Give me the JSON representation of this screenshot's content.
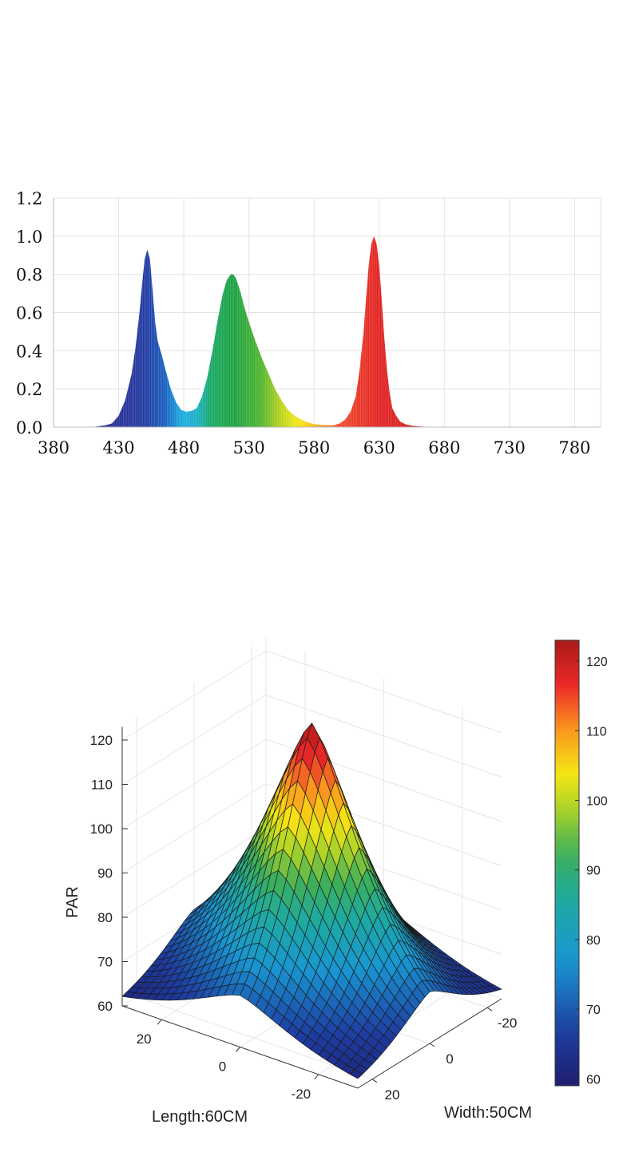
{
  "chart_data": [
    {
      "type": "area",
      "title": "",
      "xlabel": "",
      "ylabel": "",
      "xlim": [
        380,
        800
      ],
      "ylim": [
        0,
        1.2
      ],
      "x_ticks": [
        "380",
        "430",
        "480",
        "530",
        "580",
        "630",
        "680",
        "730",
        "780"
      ],
      "y_ticks": [
        "0.0",
        "0.2",
        "0.4",
        "0.6",
        "0.8",
        "1.0",
        "1.2"
      ],
      "grid": true,
      "fill": "spectral wavelength colors",
      "series": [
        {
          "x": [
            410,
            415,
            420,
            425,
            430,
            435,
            440,
            443,
            446,
            448,
            450,
            452,
            454,
            456,
            458,
            460,
            463,
            466,
            470,
            474,
            478,
            482,
            486,
            490,
            494,
            498,
            502,
            506,
            510,
            513,
            516,
            518,
            520,
            523,
            526,
            530,
            535,
            540,
            545,
            550,
            555,
            560,
            565,
            570,
            575,
            580,
            585,
            590,
            595,
            600,
            604,
            608,
            612,
            615,
            618,
            620,
            622,
            624,
            626,
            628,
            630,
            632,
            634,
            636,
            638,
            640,
            643,
            646,
            650,
            655,
            660,
            665,
            670,
            675
          ],
          "y": [
            0.0,
            0.005,
            0.01,
            0.02,
            0.06,
            0.14,
            0.28,
            0.42,
            0.6,
            0.75,
            0.88,
            0.93,
            0.88,
            0.72,
            0.55,
            0.45,
            0.38,
            0.3,
            0.2,
            0.13,
            0.09,
            0.08,
            0.085,
            0.1,
            0.16,
            0.26,
            0.4,
            0.56,
            0.7,
            0.77,
            0.8,
            0.8,
            0.78,
            0.72,
            0.64,
            0.55,
            0.45,
            0.36,
            0.28,
            0.2,
            0.14,
            0.09,
            0.06,
            0.04,
            0.025,
            0.015,
            0.012,
            0.01,
            0.01,
            0.02,
            0.04,
            0.08,
            0.16,
            0.3,
            0.5,
            0.68,
            0.85,
            0.96,
            1.0,
            0.96,
            0.85,
            0.66,
            0.46,
            0.3,
            0.18,
            0.1,
            0.06,
            0.03,
            0.015,
            0.008,
            0.004,
            0.002,
            0.001,
            0.0
          ]
        }
      ]
    },
    {
      "type": "heatmap",
      "title": "",
      "zlabel": "PAR",
      "xlabel": "Length:60CM",
      "ylabel": "Width:50CM",
      "zlim": [
        60,
        123
      ],
      "z_ticks": [
        "60",
        "70",
        "80",
        "90",
        "100",
        "110",
        "120"
      ],
      "length_ticks": [
        "20",
        "0",
        "-20"
      ],
      "width_ticks": [
        "-20",
        "0",
        "20"
      ],
      "colorbar_ticks": [
        "60",
        "70",
        "80",
        "90",
        "100",
        "110",
        "120"
      ],
      "colorbar_range": [
        59,
        123
      ],
      "colormap": "jet",
      "surface": {
        "length_range": [
          -30,
          30
        ],
        "width_range": [
          -25,
          25
        ],
        "peak": 123,
        "corner_min": 60
      }
    }
  ]
}
